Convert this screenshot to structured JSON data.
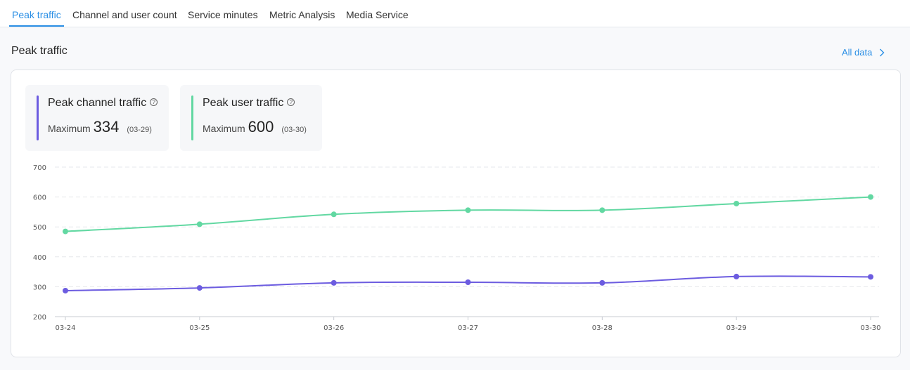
{
  "tabs": [
    {
      "label": "Peak traffic",
      "active": true
    },
    {
      "label": "Channel and user count",
      "active": false
    },
    {
      "label": "Service minutes",
      "active": false
    },
    {
      "label": "Metric Analysis",
      "active": false
    },
    {
      "label": "Media Service",
      "active": false
    }
  ],
  "section": {
    "title": "Peak traffic",
    "all_data_label": "All data"
  },
  "stats": [
    {
      "label": "Peak channel traffic",
      "max_label": "Maximum",
      "max_value": "334",
      "max_date": "(03-29)",
      "color": "#6c5ce0"
    },
    {
      "label": "Peak user traffic",
      "max_label": "Maximum",
      "max_value": "600",
      "max_date": "(03-30)",
      "color": "#62d8a2"
    }
  ],
  "icons": {
    "help": "question-circle-icon",
    "arrow": "chevron-right-icon"
  },
  "chart_data": {
    "type": "line",
    "x": [
      "03-24",
      "03-25",
      "03-26",
      "03-27",
      "03-28",
      "03-29",
      "03-30"
    ],
    "series": [
      {
        "values": [
          485,
          509,
          542,
          556,
          556,
          578,
          600
        ],
        "color": "#62d8a2"
      },
      {
        "values": [
          287,
          296,
          313,
          315,
          313,
          334,
          333
        ],
        "color": "#6c5ce0"
      }
    ],
    "yticks": [
      200,
      300,
      400,
      500,
      600,
      700
    ],
    "ylim": [
      200,
      700
    ],
    "grid": true
  }
}
